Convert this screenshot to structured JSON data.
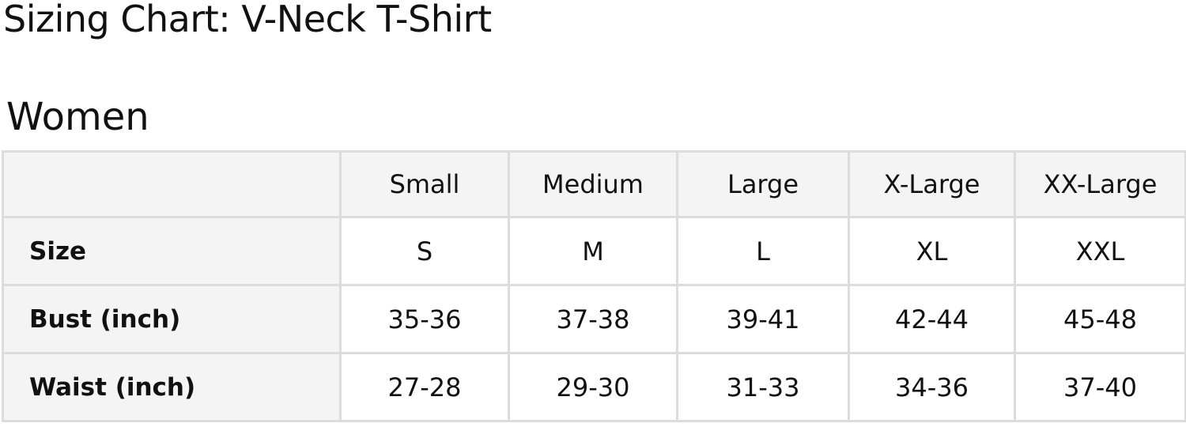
{
  "title": "Sizing Chart: V-Neck T-Shirt",
  "section": "Women",
  "table": {
    "columns": [
      "",
      "Small",
      "Medium",
      "Large",
      "X-Large",
      "XX-Large"
    ],
    "rows": [
      {
        "label": "Size",
        "values": [
          "S",
          "M",
          "L",
          "XL",
          "XXL"
        ]
      },
      {
        "label": "Bust (inch)",
        "values": [
          "35-36",
          "37-38",
          "39-41",
          "42-44",
          "45-48"
        ]
      },
      {
        "label": "Waist (inch)",
        "values": [
          "27-28",
          "29-30",
          "31-33",
          "34-36",
          "37-40"
        ]
      }
    ]
  }
}
